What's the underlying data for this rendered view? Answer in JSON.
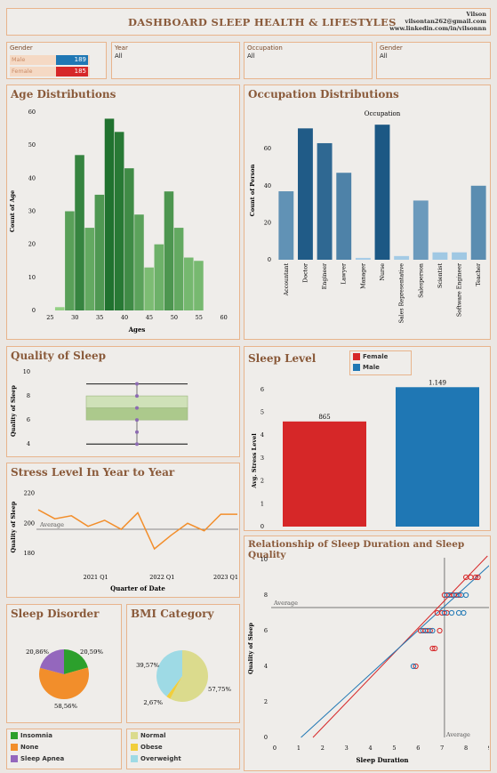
{
  "header": {
    "title": "DASHBOARD SLEEP HEALTH & LIFESTYLES",
    "author": "Vilson",
    "email": "vilsontan262@gmail.com",
    "linkedin": "www.linkedin.com/in/vilsonnn"
  },
  "filters": {
    "gender": {
      "label": "Gender",
      "rows": [
        {
          "name": "Male",
          "value": "189",
          "color": "#1f77b4"
        },
        {
          "name": "Female",
          "value": "185",
          "color": "#d62728"
        }
      ]
    },
    "year": {
      "label": "Year",
      "value": "All"
    },
    "occupation": {
      "label": "Occupation",
      "value": "All"
    },
    "gender2": {
      "label": "Gender",
      "value": "All"
    }
  },
  "titles": {
    "age": "Age Distributions",
    "occupation": "Occupation Distributions",
    "quality": "Quality of Sleep",
    "stress_year": "Stress Level In Year to Year",
    "sleep_level": "Sleep Level",
    "relationship": "Relationship of Sleep Duration and Sleep Quality",
    "disorder": "Sleep Disorder",
    "bmi": "BMI Category"
  },
  "chart_data": [
    {
      "id": "age",
      "type": "bar",
      "xlabel": "Ages",
      "ylabel": "Count of Age",
      "x": [
        27,
        29,
        31,
        33,
        35,
        37,
        39,
        41,
        43,
        45,
        47,
        49,
        51,
        53,
        55,
        57,
        59
      ],
      "values": [
        1,
        30,
        47,
        25,
        35,
        58,
        54,
        43,
        29,
        13,
        20,
        36,
        25,
        16,
        15,
        0,
        0
      ],
      "xticks": [
        "25",
        "30",
        "35",
        "40",
        "45",
        "50",
        "55",
        "60"
      ],
      "yticks": [
        "0",
        "10",
        "20",
        "30",
        "40",
        "50",
        "60"
      ],
      "ylim": [
        0,
        60
      ]
    },
    {
      "id": "occupation",
      "type": "bar",
      "title": "Occupation",
      "ylabel": "Count of Person",
      "categories": [
        "Accountant",
        "Doctor",
        "Engineer",
        "Lawyer",
        "Manager",
        "Nurse",
        "Sales Representative",
        "Salesperson",
        "Scientist",
        "Software Engineer",
        "Teacher"
      ],
      "values": [
        37,
        71,
        63,
        47,
        1,
        73,
        2,
        32,
        4,
        4,
        40
      ],
      "yticks": [
        "0",
        "20",
        "40",
        "60"
      ],
      "ylim": [
        0,
        75
      ]
    },
    {
      "id": "quality",
      "type": "box",
      "ylabel": "Quality of Sleep",
      "yticks": [
        "4",
        "6",
        "8",
        "10"
      ],
      "ylim": [
        3.5,
        10
      ],
      "min": 4,
      "q1": 6,
      "median": 7,
      "q3": 8,
      "max": 9,
      "points": [
        4,
        5,
        6,
        7,
        8,
        9
      ]
    },
    {
      "id": "stress_year",
      "type": "line",
      "xlabel": "Quarter of Date",
      "ylabel": "Quality of Sleep",
      "x_ticks": [
        "2021 Q1",
        "2022 Q1",
        "2023 Q1"
      ],
      "yticks": [
        "180",
        "200",
        "220"
      ],
      "ylim": [
        170,
        225
      ],
      "values": [
        209,
        203,
        205,
        198,
        202,
        196,
        207,
        183,
        192,
        200,
        195,
        206,
        206
      ],
      "reference": {
        "label": "Average",
        "value": 196
      }
    },
    {
      "id": "sleep_level",
      "type": "bar",
      "ylabel": "Avg. Stress Level",
      "series": [
        {
          "name": "Female",
          "value": 4.6,
          "label": "865",
          "color": "#d62728"
        },
        {
          "name": "Male",
          "value": 6.1,
          "label": "1.149",
          "color": "#1f77b4"
        }
      ],
      "yticks": [
        "0",
        "1",
        "2",
        "3",
        "4",
        "5",
        "6"
      ],
      "ylim": [
        0,
        6.5
      ]
    },
    {
      "id": "relationship",
      "type": "scatter",
      "xlabel": "Sleep Duration",
      "ylabel": "Quality of Sleep",
      "xticks": [
        "0",
        "1",
        "2",
        "3",
        "4",
        "5",
        "6",
        "7",
        "8",
        "9"
      ],
      "yticks": [
        "0",
        "2",
        "4",
        "6",
        "8",
        "10"
      ],
      "xlim": [
        0,
        9
      ],
      "ylim": [
        0,
        10
      ],
      "avg_x": 7.1,
      "avg_y": 7.3,
      "ref_label_x": "Average",
      "ref_label_y": "Average",
      "female": [
        [
          5.9,
          4
        ],
        [
          6.1,
          6
        ],
        [
          6.3,
          6
        ],
        [
          6.5,
          6
        ],
        [
          6.6,
          5
        ],
        [
          6.7,
          5
        ],
        [
          6.9,
          6
        ],
        [
          6.8,
          7
        ],
        [
          7.0,
          7
        ],
        [
          7.2,
          7
        ],
        [
          7.1,
          8
        ],
        [
          7.3,
          8
        ],
        [
          7.5,
          8
        ],
        [
          7.7,
          8
        ],
        [
          8.0,
          9
        ],
        [
          8.2,
          9
        ],
        [
          8.4,
          9
        ],
        [
          8.5,
          9
        ]
      ],
      "male": [
        [
          5.8,
          4
        ],
        [
          6.2,
          6
        ],
        [
          6.4,
          6
        ],
        [
          6.6,
          6
        ],
        [
          7.4,
          7
        ],
        [
          7.7,
          7
        ],
        [
          7.9,
          7
        ],
        [
          7.6,
          8
        ],
        [
          7.8,
          8
        ],
        [
          8.0,
          8
        ],
        [
          7.2,
          8
        ],
        [
          7.4,
          8
        ],
        [
          7.1,
          7
        ]
      ]
    },
    {
      "id": "disorder",
      "type": "pie",
      "slices": [
        {
          "name": "Insomnia",
          "value": 20.59,
          "label": "20,59%",
          "color": "#2ca02c"
        },
        {
          "name": "None",
          "value": 58.56,
          "label": "58,56%",
          "color": "#f28e2b"
        },
        {
          "name": "Sleep Apnea",
          "value": 20.86,
          "label": "20,86%",
          "color": "#9467bd"
        }
      ]
    },
    {
      "id": "bmi",
      "type": "pie",
      "slices": [
        {
          "name": "Normal",
          "value": 57.75,
          "label": "57,75%",
          "color": "#dbdb8d"
        },
        {
          "name": "Obese",
          "value": 2.67,
          "label": "2,67%",
          "color": "#f1ce3c"
        },
        {
          "name": "Overweight",
          "value": 39.57,
          "label": "39,57%",
          "color": "#9edae5"
        }
      ]
    }
  ]
}
